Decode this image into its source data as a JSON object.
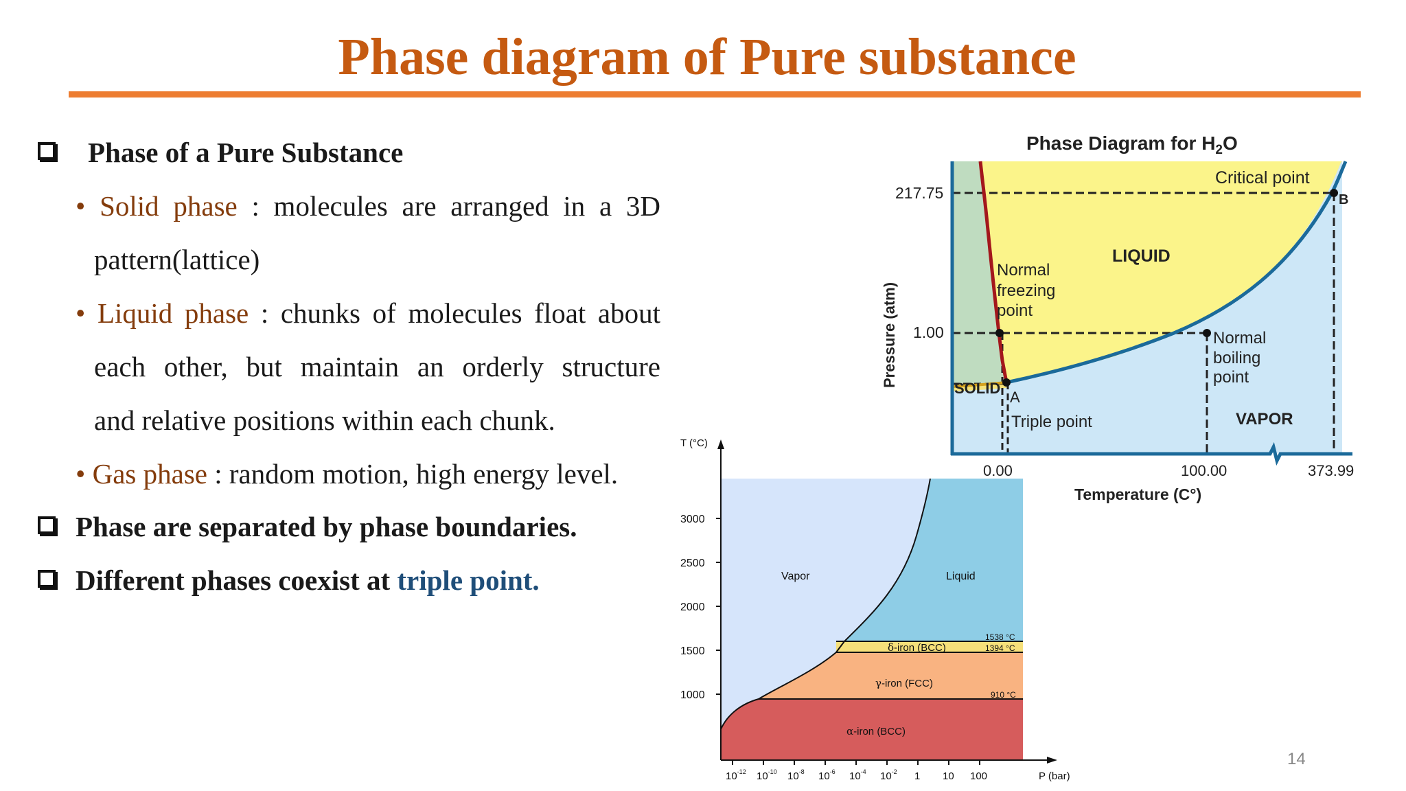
{
  "slide": {
    "title": "Phase diagram of Pure substance",
    "page_number": "14"
  },
  "bullets": {
    "heading": "Phase of a Pure Substance",
    "solid": {
      "term": "Solid phase",
      "line1": " : molecules are arranged in a 3D",
      "line2": "pattern(lattice)"
    },
    "liquid": {
      "term": "Liquid phase",
      "line1": " : chunks of molecules float about",
      "line2": "each other, but maintain an  orderly structure",
      "line3": "and relative positions within each chunk."
    },
    "gas": {
      "term": "Gas phase",
      "line1": " : random motion, high energy level."
    },
    "boundaries": "Phase are separated by phase boundaries.",
    "coexist_prefix": "Different phases coexist at ",
    "coexist_link": "triple point."
  },
  "water_diagram": {
    "title_prefix": "Phase Diagram for H",
    "title_sub": "2",
    "title_suffix": "O",
    "ylabel": "Pressure (atm)",
    "xlabel": "Temperature (C°)",
    "y_ticks": [
      "217.75",
      "1.00"
    ],
    "x_ticks": [
      "0.00",
      "100.00",
      "373.99"
    ],
    "regions": {
      "liquid": "LIQUID",
      "solid": "SOLID",
      "vapor": "VAPOR"
    },
    "labels": {
      "critical_point": "Critical point",
      "b": "B",
      "a": "A",
      "freezing_1": "Normal",
      "freezing_2": "freezing",
      "freezing_3": "point",
      "boiling_1": "Normal",
      "boiling_2": "boiling",
      "boiling_3": "point",
      "triple_point": "Triple point"
    },
    "colors": {
      "liquid": "#fbf48a",
      "vapor": "#cde7f7",
      "solid": "#bfdcc0",
      "curve": "#1b6a9a",
      "fusion": "#a3171c"
    }
  },
  "iron_diagram": {
    "ylabel": "T (°C)",
    "xlabel": "P (bar)",
    "y_ticks": [
      "3000",
      "2500",
      "2000",
      "1500",
      "1000"
    ],
    "x_ticks": [
      {
        "base": "10",
        "exp": "-12"
      },
      {
        "base": "10",
        "exp": "-10"
      },
      {
        "base": "10",
        "exp": "-8"
      },
      {
        "base": "10",
        "exp": "-6"
      },
      {
        "base": "10",
        "exp": "-4"
      },
      {
        "base": "10",
        "exp": "-2"
      },
      {
        "base": "1",
        "exp": ""
      },
      {
        "base": "10",
        "exp": ""
      },
      {
        "base": "100",
        "exp": ""
      }
    ],
    "regions": {
      "vapor": "Vapor",
      "liquid": "Liquid",
      "delta_symbol": "δ",
      "delta": "-iron (BCC)",
      "gamma_symbol": "γ",
      "gamma": "-iron (FCC)",
      "alpha_symbol": "α",
      "alpha": "-iron (BCC)"
    },
    "temps": {
      "t1538": "1538 °C",
      "t1394": "1394 °C",
      "t910": "910 °C"
    },
    "colors": {
      "vapor": "#d6e5fb",
      "liquid": "#8ecde6",
      "delta": "#f6e07a",
      "gamma": "#f9b381",
      "alpha": "#d65c5c"
    }
  }
}
